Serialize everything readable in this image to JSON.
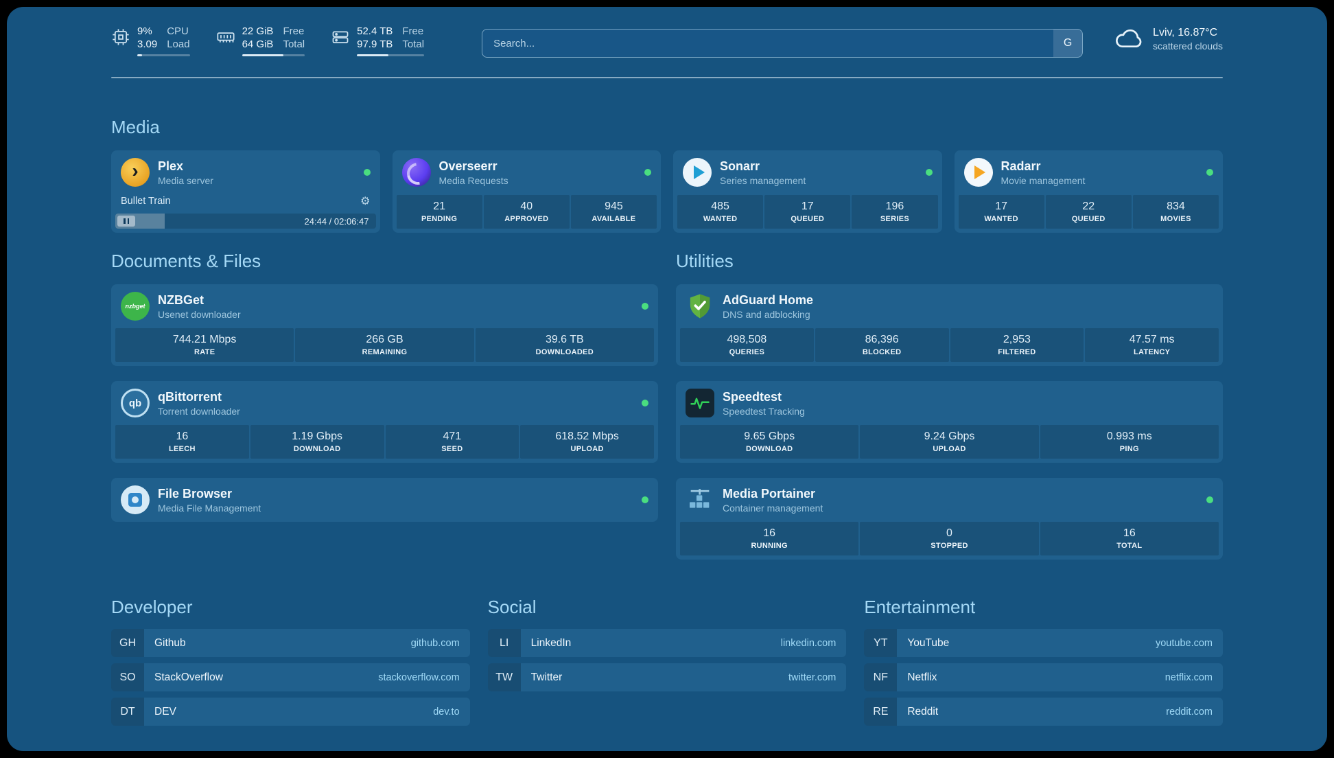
{
  "colors": {
    "board_bg": "#16537f",
    "card_bg": "#20608d",
    "heading_text": "#a5d9f6",
    "url_text": "#9fd9f6",
    "online_green": "#4ade80"
  },
  "topbar": {
    "cpu": {
      "value1": "9%",
      "value2": "3.09",
      "label1": "CPU",
      "label2": "Load",
      "bar_percent": 9
    },
    "memory": {
      "value1": "22 GiB",
      "value2": "64 GiB",
      "label1": "Free",
      "label2": "Total",
      "bar_percent": 66
    },
    "disk": {
      "value1": "52.4 TB",
      "value2": "97.9 TB",
      "label1": "Free",
      "label2": "Total",
      "bar_percent": 47
    },
    "search": {
      "placeholder": "Search...",
      "provider_label": "G"
    },
    "weather": {
      "location": "Lviv, 16.87°C",
      "condition": "scattered clouds"
    }
  },
  "sections": {
    "media": "Media",
    "documents": "Documents & Files",
    "utilities": "Utilities",
    "developer": "Developer",
    "social": "Social",
    "entertainment": "Entertainment"
  },
  "icons": {
    "plex_chevron": "›",
    "gear": "⚙",
    "nzbget_text": "nzbget",
    "qb_text": "qb"
  },
  "services": {
    "plex": {
      "name": "Plex",
      "subtitle": "Media server",
      "status": "online",
      "now_playing": "Bullet Train",
      "time": "24:44 / 02:06:47",
      "progress_percent": 19
    },
    "overseerr": {
      "name": "Overseerr",
      "subtitle": "Media Requests",
      "status": "online",
      "stats": [
        {
          "value": "21",
          "label": "PENDING"
        },
        {
          "value": "40",
          "label": "APPROVED"
        },
        {
          "value": "945",
          "label": "AVAILABLE"
        }
      ]
    },
    "sonarr": {
      "name": "Sonarr",
      "subtitle": "Series management",
      "status": "online",
      "stats": [
        {
          "value": "485",
          "label": "WANTED"
        },
        {
          "value": "17",
          "label": "QUEUED"
        },
        {
          "value": "196",
          "label": "SERIES"
        }
      ]
    },
    "radarr": {
      "name": "Radarr",
      "subtitle": "Movie management",
      "status": "online",
      "stats": [
        {
          "value": "17",
          "label": "WANTED"
        },
        {
          "value": "22",
          "label": "QUEUED"
        },
        {
          "value": "834",
          "label": "MOVIES"
        }
      ]
    },
    "nzbget": {
      "name": "NZBGet",
      "subtitle": "Usenet downloader",
      "status": "online",
      "stats": [
        {
          "value": "744.21 Mbps",
          "label": "RATE"
        },
        {
          "value": "266 GB",
          "label": "REMAINING"
        },
        {
          "value": "39.6 TB",
          "label": "DOWNLOADED"
        }
      ]
    },
    "qbittorrent": {
      "name": "qBittorrent",
      "subtitle": "Torrent downloader",
      "status": "online",
      "stats": [
        {
          "value": "16",
          "label": "LEECH"
        },
        {
          "value": "1.19 Gbps",
          "label": "DOWNLOAD"
        },
        {
          "value": "471",
          "label": "SEED"
        },
        {
          "value": "618.52 Mbps",
          "label": "UPLOAD"
        }
      ]
    },
    "filebrowser": {
      "name": "File Browser",
      "subtitle": "Media File Management",
      "status": "online",
      "stats": []
    },
    "adguard": {
      "name": "AdGuard Home",
      "subtitle": "DNS and adblocking",
      "stats": [
        {
          "value": "498,508",
          "label": "QUERIES"
        },
        {
          "value": "86,396",
          "label": "BLOCKED"
        },
        {
          "value": "2,953",
          "label": "FILTERED"
        },
        {
          "value": "47.57 ms",
          "label": "LATENCY"
        }
      ]
    },
    "speedtest": {
      "name": "Speedtest",
      "subtitle": "Speedtest Tracking",
      "stats": [
        {
          "value": "9.65 Gbps",
          "label": "DOWNLOAD"
        },
        {
          "value": "9.24 Gbps",
          "label": "UPLOAD"
        },
        {
          "value": "0.993 ms",
          "label": "PING"
        }
      ]
    },
    "portainer": {
      "name": "Media Portainer",
      "subtitle": "Container management",
      "status": "online",
      "stats": [
        {
          "value": "16",
          "label": "RUNNING"
        },
        {
          "value": "0",
          "label": "STOPPED"
        },
        {
          "value": "16",
          "label": "TOTAL"
        }
      ]
    }
  },
  "bookmarks": {
    "developer": [
      {
        "abbr": "GH",
        "name": "Github",
        "url": "github.com"
      },
      {
        "abbr": "SO",
        "name": "StackOverflow",
        "url": "stackoverflow.com"
      },
      {
        "abbr": "DT",
        "name": "DEV",
        "url": "dev.to"
      }
    ],
    "social": [
      {
        "abbr": "LI",
        "name": "LinkedIn",
        "url": "linkedin.com"
      },
      {
        "abbr": "TW",
        "name": "Twitter",
        "url": "twitter.com"
      }
    ],
    "entertainment": [
      {
        "abbr": "YT",
        "name": "YouTube",
        "url": "youtube.com"
      },
      {
        "abbr": "NF",
        "name": "Netflix",
        "url": "netflix.com"
      },
      {
        "abbr": "RE",
        "name": "Reddit",
        "url": "reddit.com"
      }
    ]
  }
}
